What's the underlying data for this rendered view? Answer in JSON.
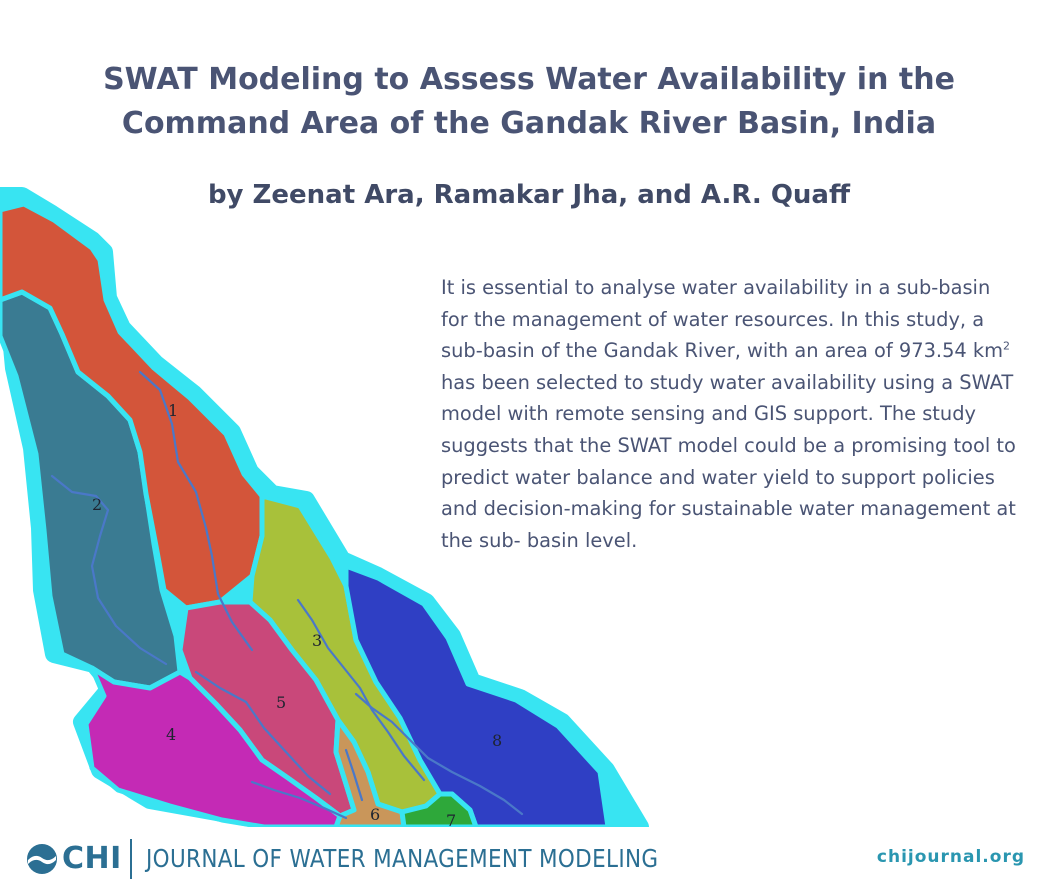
{
  "title_lines": [
    "SWAT Modeling to Assess Water Availability in the",
    "Command Area of the Gandak River Basin, India"
  ],
  "authors": "by Zeenat Ara, Ramakar Jha, and A.R. Quaff",
  "abstract": {
    "part1": "It is essential to analyse water availability in a sub-basin for the management of water resources. In this study, a sub-basin of the Gandak River, with an area of 973.54 km",
    "sup": "2",
    "part2": " has been selected to study water availability using a SWAT model with remote sensing and GIS support.  The study suggests that the SWAT model could be a promising tool to predict water balance and water yield to support policies and decision-making for sustainable water management at the sub- basin level."
  },
  "map": {
    "subbasins": [
      {
        "label": "1",
        "color": "#d3553a"
      },
      {
        "label": "2",
        "color": "#3a7b92"
      },
      {
        "label": "3",
        "color": "#a8c13a"
      },
      {
        "label": "4",
        "color": "#c42ab5"
      },
      {
        "label": "5",
        "color": "#c9487a"
      },
      {
        "label": "6",
        "color": "#c9965a"
      },
      {
        "label": "7",
        "color": "#2ea83a"
      },
      {
        "label": "8",
        "color": "#2f3fc4"
      }
    ],
    "outline_color": "#38e4f2",
    "river_color": "#4a78c8"
  },
  "footer": {
    "logo": "CHI",
    "journal": "JOURNAL OF WATER MANAGEMENT MODELING",
    "website": "chijournal.org"
  }
}
